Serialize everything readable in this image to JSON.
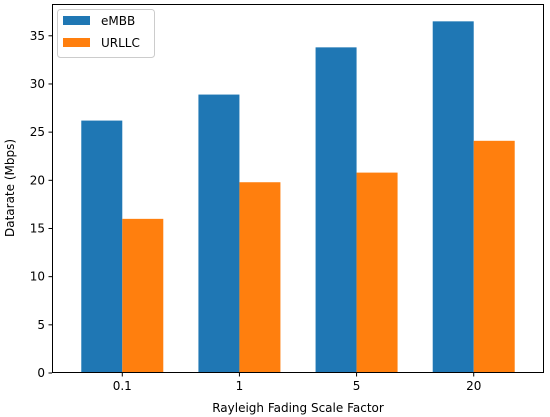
{
  "chart_data": {
    "type": "bar",
    "title": "",
    "xlabel": "Rayleigh Fading Scale Factor",
    "ylabel": "Datarate (Mbps)",
    "categories": [
      "0.1",
      "1",
      "5",
      "20"
    ],
    "series": [
      {
        "name": "eMBB",
        "color": "#1f77b4",
        "values": [
          26.2,
          28.9,
          33.8,
          36.5
        ]
      },
      {
        "name": "URLLC",
        "color": "#ff7f0e",
        "values": [
          16.0,
          19.8,
          20.8,
          24.1
        ]
      }
    ],
    "ylim": [
      0,
      38.3
    ],
    "yticks": [
      0,
      5,
      10,
      15,
      20,
      25,
      30,
      35
    ],
    "ytick_labels": [
      "0",
      "5",
      "10",
      "15",
      "20",
      "25",
      "30",
      "35"
    ],
    "grid": false,
    "legend": "top-left"
  }
}
